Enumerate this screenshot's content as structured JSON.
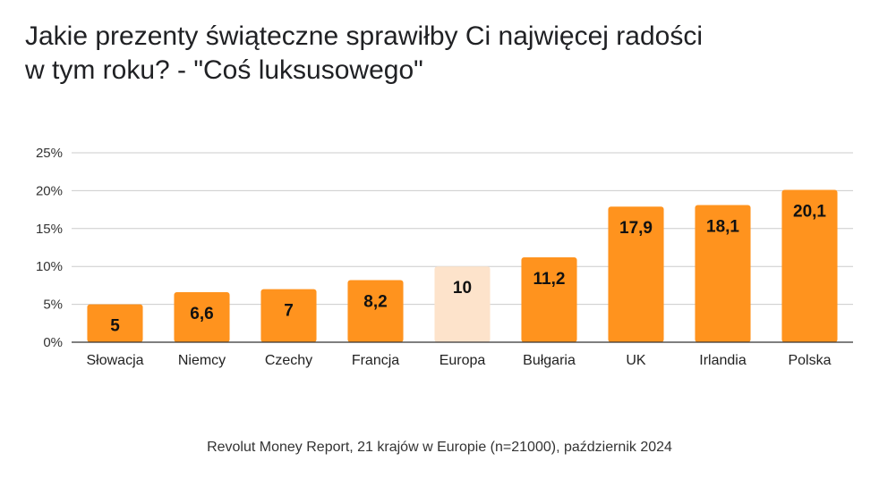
{
  "title_lines": [
    "Jakie prezenty świąteczne sprawiłby Ci najwięcej radości",
    "w tym roku? - \"Coś luksusowego\""
  ],
  "footer": "Revolut Money Report, 21 krajów w Europie (n=21000), październik 2024",
  "colors": {
    "bar": "#ff931e",
    "highlight": "#fde3cb",
    "grid": "#cccccc",
    "axis": "#333333"
  },
  "chart_data": {
    "type": "bar",
    "title": "Jakie prezenty świąteczne sprawiłby Ci najwięcej radości w tym roku? - \"Coś luksusowego\"",
    "xlabel": "",
    "ylabel": "",
    "ylim": [
      0,
      25
    ],
    "yticks": [
      "0%",
      "5%",
      "10%",
      "15%",
      "20%",
      "25%"
    ],
    "grid": true,
    "legend": "none",
    "categories": [
      "Słowacja",
      "Niemcy",
      "Czechy",
      "Francja",
      "Europa",
      "Bułgaria",
      "UK",
      "Irlandia",
      "Polska"
    ],
    "values": [
      5,
      6.6,
      7,
      8.2,
      10,
      11.2,
      17.9,
      18.1,
      20.1
    ],
    "data_labels": [
      "5",
      "6,6",
      "7",
      "8,2",
      "10",
      "11,2",
      "17,9",
      "18,1",
      "20,1"
    ],
    "highlight_category": "Europa"
  }
}
